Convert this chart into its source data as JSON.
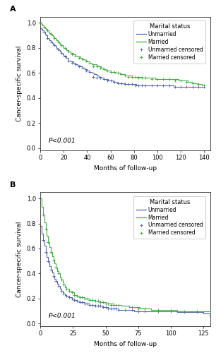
{
  "panel_A": {
    "title": "A",
    "xlabel": "Months of follow-up",
    "ylabel": "Cancer-specific survival",
    "xlim": [
      0,
      145
    ],
    "ylim": [
      -0.02,
      1.05
    ],
    "xticks": [
      0,
      20,
      40,
      60,
      80,
      100,
      120,
      140
    ],
    "yticks": [
      0.0,
      0.2,
      0.4,
      0.6,
      0.8,
      1.0
    ],
    "pvalue": "P<0.001",
    "unmarried_color": "#5566aa",
    "married_color": "#44aa44",
    "unmarried_x": [
      0,
      1,
      2,
      3,
      4,
      5,
      6,
      7,
      8,
      9,
      10,
      11,
      12,
      13,
      14,
      15,
      16,
      17,
      18,
      19,
      20,
      22,
      24,
      26,
      28,
      30,
      32,
      34,
      36,
      38,
      40,
      42,
      44,
      46,
      48,
      50,
      52,
      54,
      56,
      58,
      60,
      62,
      64,
      66,
      68,
      70,
      72,
      74,
      76,
      78,
      80,
      82,
      84,
      86,
      88,
      90,
      92,
      94,
      96,
      98,
      100,
      102,
      104,
      106,
      108,
      110,
      112,
      114,
      116,
      118,
      120,
      122,
      124,
      126,
      128,
      130,
      132,
      134,
      136,
      138,
      140
    ],
    "unmarried_y": [
      0.96,
      0.95,
      0.94,
      0.93,
      0.91,
      0.9,
      0.88,
      0.87,
      0.86,
      0.85,
      0.84,
      0.83,
      0.82,
      0.81,
      0.8,
      0.79,
      0.78,
      0.77,
      0.76,
      0.75,
      0.74,
      0.72,
      0.7,
      0.69,
      0.68,
      0.67,
      0.66,
      0.65,
      0.64,
      0.63,
      0.62,
      0.61,
      0.6,
      0.59,
      0.58,
      0.57,
      0.56,
      0.55,
      0.55,
      0.54,
      0.54,
      0.53,
      0.53,
      0.52,
      0.52,
      0.52,
      0.51,
      0.51,
      0.51,
      0.51,
      0.51,
      0.5,
      0.5,
      0.5,
      0.5,
      0.5,
      0.5,
      0.5,
      0.5,
      0.5,
      0.5,
      0.5,
      0.5,
      0.5,
      0.5,
      0.5,
      0.5,
      0.49,
      0.49,
      0.49,
      0.49,
      0.49,
      0.49,
      0.49,
      0.49,
      0.49,
      0.49,
      0.49,
      0.49,
      0.49,
      0.49
    ],
    "married_x": [
      0,
      1,
      2,
      3,
      4,
      5,
      6,
      7,
      8,
      9,
      10,
      11,
      12,
      13,
      14,
      15,
      16,
      17,
      18,
      19,
      20,
      22,
      24,
      26,
      28,
      30,
      32,
      34,
      36,
      38,
      40,
      42,
      44,
      46,
      48,
      50,
      52,
      54,
      56,
      58,
      60,
      62,
      64,
      66,
      68,
      70,
      72,
      74,
      76,
      78,
      80,
      82,
      84,
      86,
      88,
      90,
      92,
      94,
      96,
      98,
      100,
      102,
      104,
      106,
      108,
      110,
      112,
      114,
      116,
      118,
      120,
      122,
      124,
      126,
      128,
      130,
      132,
      134,
      136,
      138,
      140
    ],
    "married_y": [
      1.0,
      0.99,
      0.98,
      0.97,
      0.96,
      0.95,
      0.94,
      0.93,
      0.92,
      0.91,
      0.9,
      0.89,
      0.88,
      0.87,
      0.86,
      0.85,
      0.84,
      0.83,
      0.82,
      0.81,
      0.8,
      0.78,
      0.77,
      0.76,
      0.75,
      0.74,
      0.73,
      0.72,
      0.71,
      0.7,
      0.69,
      0.68,
      0.67,
      0.67,
      0.66,
      0.65,
      0.64,
      0.63,
      0.62,
      0.62,
      0.61,
      0.61,
      0.6,
      0.6,
      0.59,
      0.59,
      0.58,
      0.58,
      0.58,
      0.57,
      0.57,
      0.57,
      0.57,
      0.56,
      0.56,
      0.56,
      0.56,
      0.56,
      0.56,
      0.55,
      0.55,
      0.55,
      0.55,
      0.55,
      0.55,
      0.55,
      0.55,
      0.55,
      0.55,
      0.54,
      0.54,
      0.54,
      0.54,
      0.53,
      0.53,
      0.52,
      0.52,
      0.51,
      0.51,
      0.5,
      0.5
    ],
    "censor_unmarried_x": [
      3,
      6,
      9,
      12,
      15,
      18,
      21,
      24,
      27,
      30,
      33,
      36,
      39,
      42,
      45,
      48,
      51,
      54,
      57,
      60,
      63,
      66,
      69,
      72,
      75,
      78,
      81,
      84,
      87,
      90,
      95,
      100,
      105,
      110,
      115,
      120,
      125,
      130,
      135,
      140
    ],
    "censor_unmarried_y": [
      0.93,
      0.88,
      0.85,
      0.82,
      0.79,
      0.76,
      0.73,
      0.7,
      0.68,
      0.67,
      0.65,
      0.64,
      0.62,
      0.61,
      0.57,
      0.56,
      0.56,
      0.55,
      0.54,
      0.54,
      0.53,
      0.52,
      0.52,
      0.51,
      0.51,
      0.51,
      0.5,
      0.5,
      0.5,
      0.5,
      0.5,
      0.5,
      0.5,
      0.5,
      0.49,
      0.49,
      0.49,
      0.49,
      0.49,
      0.49
    ],
    "censor_married_x": [
      3,
      6,
      9,
      12,
      15,
      18,
      21,
      24,
      27,
      30,
      33,
      36,
      39,
      42,
      45,
      48,
      51,
      54,
      57,
      60,
      63,
      66,
      69,
      72,
      75,
      78,
      81,
      84,
      87,
      90,
      95,
      100,
      105,
      110,
      115,
      120,
      125,
      130,
      135,
      140
    ],
    "censor_married_y": [
      0.97,
      0.94,
      0.91,
      0.88,
      0.85,
      0.82,
      0.8,
      0.77,
      0.75,
      0.74,
      0.72,
      0.71,
      0.7,
      0.68,
      0.65,
      0.65,
      0.64,
      0.63,
      0.62,
      0.61,
      0.61,
      0.6,
      0.59,
      0.58,
      0.57,
      0.57,
      0.57,
      0.56,
      0.56,
      0.56,
      0.55,
      0.55,
      0.55,
      0.55,
      0.54,
      0.54,
      0.53,
      0.52,
      0.51,
      0.5
    ]
  },
  "panel_B": {
    "title": "B",
    "xlabel": "Months of follow-up",
    "ylabel": "Cancer-specific survival",
    "xlim": [
      0,
      130
    ],
    "ylim": [
      -0.02,
      1.05
    ],
    "xticks": [
      0,
      25,
      50,
      75,
      100,
      125
    ],
    "yticks": [
      0.0,
      0.2,
      0.4,
      0.6,
      0.8,
      1.0
    ],
    "pvalue": "P<0.001",
    "unmarried_color": "#5566aa",
    "married_color": "#44aa44",
    "unmarried_x": [
      0,
      1,
      2,
      3,
      4,
      5,
      6,
      7,
      8,
      9,
      10,
      11,
      12,
      13,
      14,
      15,
      16,
      17,
      18,
      19,
      20,
      22,
      24,
      26,
      28,
      30,
      32,
      34,
      36,
      38,
      40,
      42,
      44,
      46,
      48,
      50,
      52,
      54,
      56,
      58,
      60,
      62,
      64,
      66,
      68,
      70,
      72,
      74,
      76,
      78,
      80,
      85,
      90,
      95,
      100,
      105,
      110,
      115,
      120,
      125,
      130
    ],
    "unmarried_y": [
      0.78,
      0.72,
      0.67,
      0.62,
      0.57,
      0.53,
      0.5,
      0.46,
      0.43,
      0.41,
      0.38,
      0.36,
      0.34,
      0.32,
      0.3,
      0.28,
      0.26,
      0.25,
      0.24,
      0.23,
      0.22,
      0.21,
      0.2,
      0.19,
      0.18,
      0.17,
      0.17,
      0.16,
      0.16,
      0.15,
      0.15,
      0.14,
      0.14,
      0.14,
      0.13,
      0.13,
      0.12,
      0.12,
      0.12,
      0.12,
      0.11,
      0.11,
      0.11,
      0.11,
      0.11,
      0.11,
      0.1,
      0.1,
      0.1,
      0.1,
      0.1,
      0.1,
      0.1,
      0.1,
      0.1,
      0.09,
      0.09,
      0.09,
      0.09,
      0.08,
      0.07
    ],
    "married_x": [
      0,
      1,
      2,
      3,
      4,
      5,
      6,
      7,
      8,
      9,
      10,
      11,
      12,
      13,
      14,
      15,
      16,
      17,
      18,
      19,
      20,
      22,
      24,
      26,
      28,
      30,
      32,
      34,
      36,
      38,
      40,
      42,
      44,
      46,
      48,
      50,
      52,
      54,
      56,
      58,
      60,
      62,
      64,
      66,
      68,
      70,
      72,
      74,
      76,
      78,
      80,
      85,
      90,
      95,
      100,
      105,
      110,
      115,
      120,
      125,
      130
    ],
    "married_y": [
      1.0,
      0.93,
      0.87,
      0.81,
      0.76,
      0.7,
      0.65,
      0.61,
      0.57,
      0.54,
      0.51,
      0.48,
      0.45,
      0.42,
      0.4,
      0.37,
      0.35,
      0.33,
      0.31,
      0.29,
      0.28,
      0.26,
      0.25,
      0.23,
      0.22,
      0.21,
      0.21,
      0.2,
      0.2,
      0.19,
      0.19,
      0.18,
      0.18,
      0.17,
      0.17,
      0.16,
      0.16,
      0.16,
      0.15,
      0.15,
      0.15,
      0.14,
      0.14,
      0.14,
      0.13,
      0.13,
      0.13,
      0.13,
      0.12,
      0.12,
      0.12,
      0.11,
      0.11,
      0.11,
      0.11,
      0.1,
      0.1,
      0.1,
      0.1,
      0.1,
      0.1
    ],
    "censor_unmarried_x": [
      2,
      4,
      6,
      8,
      10,
      12,
      14,
      16,
      18,
      20,
      22,
      24,
      26,
      28,
      30,
      32,
      34,
      36,
      38,
      40,
      42,
      44,
      46,
      48,
      50,
      52,
      54,
      56,
      58,
      60,
      65,
      70,
      75,
      80,
      90,
      100,
      110,
      120,
      130
    ],
    "censor_unmarried_y": [
      0.67,
      0.57,
      0.5,
      0.43,
      0.38,
      0.34,
      0.3,
      0.26,
      0.24,
      0.22,
      0.21,
      0.2,
      0.19,
      0.18,
      0.17,
      0.17,
      0.16,
      0.16,
      0.15,
      0.15,
      0.14,
      0.14,
      0.14,
      0.13,
      0.13,
      0.12,
      0.12,
      0.12,
      0.12,
      0.11,
      0.11,
      0.11,
      0.1,
      0.1,
      0.1,
      0.1,
      0.09,
      0.09,
      0.07
    ],
    "censor_married_x": [
      2,
      4,
      6,
      8,
      10,
      12,
      14,
      16,
      18,
      20,
      22,
      24,
      26,
      28,
      30,
      32,
      34,
      36,
      38,
      40,
      42,
      44,
      46,
      48,
      50,
      52,
      54,
      56,
      58,
      60,
      65,
      70,
      75,
      80,
      90,
      100,
      110,
      120,
      130
    ],
    "censor_married_y": [
      0.87,
      0.76,
      0.65,
      0.57,
      0.51,
      0.45,
      0.4,
      0.35,
      0.31,
      0.28,
      0.26,
      0.25,
      0.23,
      0.22,
      0.21,
      0.21,
      0.2,
      0.2,
      0.19,
      0.19,
      0.18,
      0.18,
      0.17,
      0.17,
      0.16,
      0.16,
      0.15,
      0.15,
      0.15,
      0.15,
      0.11,
      0.13,
      0.12,
      0.12,
      0.11,
      0.11,
      0.1,
      0.1,
      0.1
    ]
  },
  "legend": {
    "title": "Marital status",
    "labels": [
      "Unmarried",
      "Married",
      "Unmarried censored",
      "Married censored"
    ]
  },
  "fig_width": 3.06,
  "fig_height": 5.0,
  "dpi": 100
}
